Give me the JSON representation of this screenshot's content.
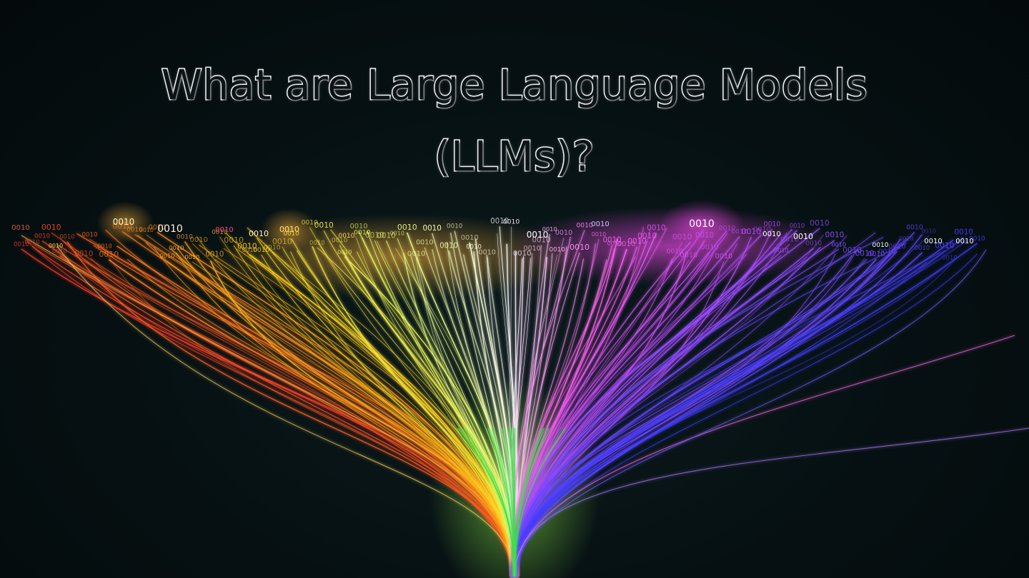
{
  "title": {
    "line1": "What are Large Language Models",
    "line2": "(LLMs)?"
  },
  "binary_label": "0010",
  "colors": {
    "background": "#071113",
    "stem": "#3ee04a",
    "spectrum": [
      "#ff3a2a",
      "#ff8a1f",
      "#ffd21f",
      "#e8ff6a",
      "#ffffff",
      "#ff5cf0",
      "#c04bff",
      "#7a4bff",
      "#3a3aff"
    ]
  }
}
